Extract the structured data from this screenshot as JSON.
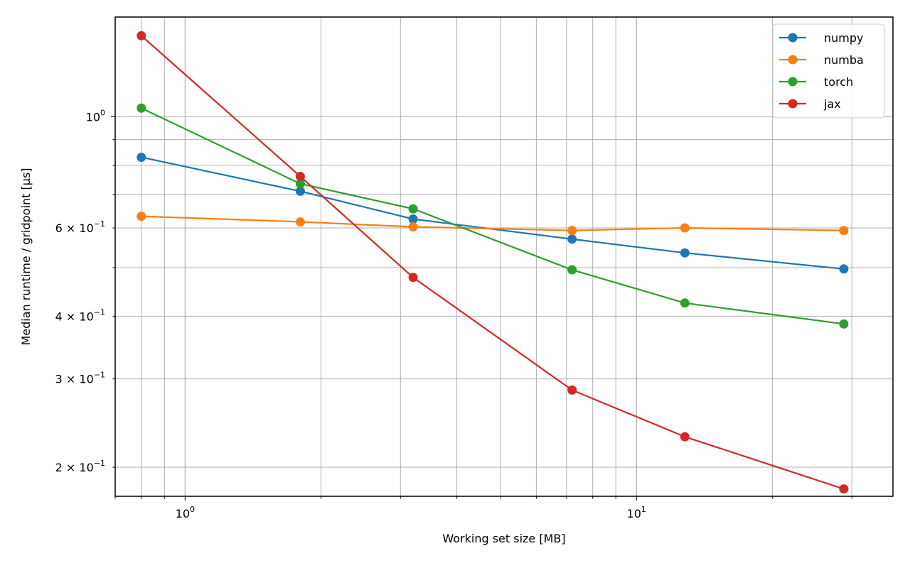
{
  "chart_data": {
    "type": "line",
    "title": "",
    "xlabel": "Working set size [MB]",
    "ylabel": "Median runtime / gridpoint [µs]",
    "xscale": "log",
    "yscale": "log",
    "xlim": [
      0.7,
      37
    ],
    "ylim": [
      0.175,
      1.58
    ],
    "grid": "on (major and minor)",
    "legend_position": "top-right",
    "x_ticks": [
      {
        "value": 1,
        "label": "10",
        "exp": "0"
      },
      {
        "value": 10,
        "label": "10",
        "exp": "1"
      }
    ],
    "y_ticks": [
      {
        "value": 1.0,
        "label": "10",
        "exp": "0"
      },
      {
        "value": 0.6,
        "label": "6 × 10",
        "exp": "−1"
      },
      {
        "value": 0.4,
        "label": "4 × 10",
        "exp": "−1"
      },
      {
        "value": 0.3,
        "label": "3 × 10",
        "exp": "−1"
      },
      {
        "value": 0.2,
        "label": "2 × 10",
        "exp": "−1"
      }
    ],
    "x": [
      0.8,
      1.8,
      3.2,
      7.2,
      12.8,
      28.8
    ],
    "series": [
      {
        "name": "numpy",
        "color": "#1f77b4",
        "values": [
          0.83,
          0.71,
          0.625,
          0.57,
          0.535,
          0.497
        ]
      },
      {
        "name": "numba",
        "color": "#ff7f0e",
        "values": [
          0.633,
          0.617,
          0.603,
          0.593,
          0.6,
          0.593
        ]
      },
      {
        "name": "torch",
        "color": "#2ca02c",
        "values": [
          1.04,
          0.735,
          0.655,
          0.495,
          0.425,
          0.386
        ]
      },
      {
        "name": "jax",
        "color": "#d62728",
        "values": [
          1.45,
          0.76,
          0.478,
          0.285,
          0.23,
          0.181
        ]
      }
    ]
  }
}
